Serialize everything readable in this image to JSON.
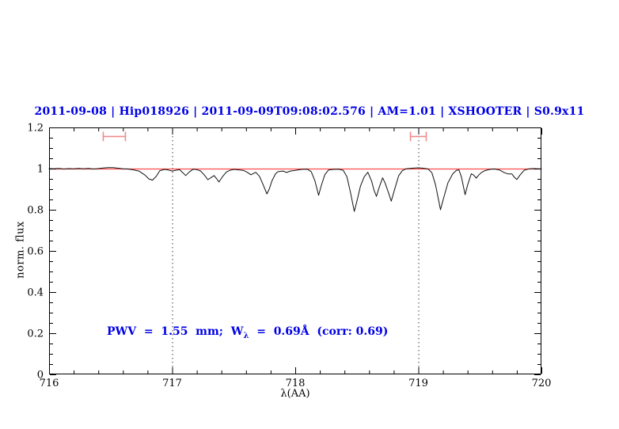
{
  "title": {
    "text": "2011-09-08 | Hip018926 | 2011-09-09T09:08:02.576 | AM=1.01 | XSHOOTER | S0.9x11",
    "color": "#0000e6"
  },
  "annotation": {
    "prefix": "PWV  =  1.55  mm;  W",
    "subscript": "λ",
    "suffix": "  =  0.69Å  (corr: 0.69)",
    "color": "#0000e6"
  },
  "chart_data": {
    "type": "line",
    "title": "2011-09-08 | Hip018926 | 2011-09-09T09:08:02.576 | AM=1.01 | XSHOOTER | S0.9x11",
    "xlabel": "λ(AA)",
    "ylabel": "norm. flux",
    "xlim": [
      716,
      720
    ],
    "ylim": [
      0,
      1.2
    ],
    "x_major_ticks": [
      716,
      717,
      718,
      719,
      720
    ],
    "x_tick_labels": [
      "716",
      "717",
      "718",
      "719",
      "720"
    ],
    "x_minor_step": 0.2,
    "y_major_ticks": [
      0,
      0.2,
      0.4,
      0.6,
      0.8,
      1,
      1.2
    ],
    "y_tick_labels": [
      "0",
      "0.2",
      "0.4",
      "0.6",
      "0.8",
      "1",
      "1.2"
    ],
    "y_minor_step": 0.05,
    "grid": "off",
    "dotted_vlines": [
      717,
      719
    ],
    "reference_line": {
      "y": 1.0,
      "color": "#ff4d4d"
    },
    "markers": [
      {
        "type": "errorbar-h",
        "x_center": 716.53,
        "x_half_width": 0.09,
        "y": 1.156,
        "cap_half_height": 0.023,
        "color": "#f08c8c"
      },
      {
        "type": "errorbar-h",
        "x_center": 719.0,
        "x_half_width": 0.064,
        "y": 1.156,
        "cap_half_height": 0.023,
        "color": "#f08c8c"
      }
    ],
    "series": [
      {
        "name": "normalized spectrum",
        "color": "#111111",
        "points": [
          [
            716.0,
            1.0
          ],
          [
            716.04,
            0.999
          ],
          [
            716.08,
            1.001
          ],
          [
            716.12,
            0.998
          ],
          [
            716.16,
            1.0
          ],
          [
            716.2,
            0.999
          ],
          [
            716.24,
            1.001
          ],
          [
            716.28,
            0.999
          ],
          [
            716.32,
            1.001
          ],
          [
            716.36,
            0.998
          ],
          [
            716.4,
            1.0
          ],
          [
            716.44,
            1.003
          ],
          [
            716.48,
            1.005
          ],
          [
            716.52,
            1.005
          ],
          [
            716.56,
            1.002
          ],
          [
            716.6,
            0.999
          ],
          [
            716.64,
            0.998
          ],
          [
            716.69,
            0.993
          ],
          [
            716.73,
            0.988
          ],
          [
            716.78,
            0.968
          ],
          [
            716.81,
            0.95
          ],
          [
            716.84,
            0.944
          ],
          [
            716.87,
            0.962
          ],
          [
            716.9,
            0.99
          ],
          [
            716.94,
            0.996
          ],
          [
            716.97,
            0.993
          ],
          [
            717.0,
            0.988
          ],
          [
            717.03,
            0.992
          ],
          [
            717.06,
            0.995
          ],
          [
            717.09,
            0.978
          ],
          [
            717.11,
            0.966
          ],
          [
            717.14,
            0.984
          ],
          [
            717.17,
            0.997
          ],
          [
            717.2,
            0.995
          ],
          [
            717.23,
            0.989
          ],
          [
            717.26,
            0.97
          ],
          [
            717.29,
            0.946
          ],
          [
            717.32,
            0.958
          ],
          [
            717.34,
            0.966
          ],
          [
            717.36,
            0.952
          ],
          [
            717.38,
            0.935
          ],
          [
            717.41,
            0.962
          ],
          [
            717.44,
            0.983
          ],
          [
            717.47,
            0.992
          ],
          [
            717.5,
            0.996
          ],
          [
            717.54,
            0.994
          ],
          [
            717.58,
            0.991
          ],
          [
            717.61,
            0.982
          ],
          [
            717.64,
            0.97
          ],
          [
            717.66,
            0.976
          ],
          [
            717.68,
            0.982
          ],
          [
            717.71,
            0.962
          ],
          [
            717.74,
            0.92
          ],
          [
            717.77,
            0.877
          ],
          [
            717.79,
            0.902
          ],
          [
            717.81,
            0.94
          ],
          [
            717.84,
            0.975
          ],
          [
            717.86,
            0.985
          ],
          [
            717.9,
            0.988
          ],
          [
            717.93,
            0.981
          ],
          [
            717.96,
            0.988
          ],
          [
            718.0,
            0.991
          ],
          [
            718.05,
            0.996
          ],
          [
            718.1,
            0.997
          ],
          [
            718.13,
            0.985
          ],
          [
            718.16,
            0.94
          ],
          [
            718.19,
            0.87
          ],
          [
            718.21,
            0.915
          ],
          [
            718.24,
            0.97
          ],
          [
            718.27,
            0.993
          ],
          [
            718.31,
            0.996
          ],
          [
            718.35,
            0.997
          ],
          [
            718.39,
            0.992
          ],
          [
            718.42,
            0.96
          ],
          [
            718.45,
            0.88
          ],
          [
            718.48,
            0.792
          ],
          [
            718.5,
            0.84
          ],
          [
            718.53,
            0.915
          ],
          [
            718.56,
            0.96
          ],
          [
            718.59,
            0.982
          ],
          [
            718.62,
            0.94
          ],
          [
            718.64,
            0.895
          ],
          [
            718.66,
            0.865
          ],
          [
            718.68,
            0.905
          ],
          [
            718.71,
            0.955
          ],
          [
            718.73,
            0.93
          ],
          [
            718.76,
            0.878
          ],
          [
            718.78,
            0.842
          ],
          [
            718.81,
            0.905
          ],
          [
            718.84,
            0.965
          ],
          [
            718.87,
            0.99
          ],
          [
            718.9,
            0.999
          ],
          [
            718.95,
            1.002
          ],
          [
            719.0,
            1.004
          ],
          [
            719.04,
            1.002
          ],
          [
            719.08,
            0.998
          ],
          [
            719.11,
            0.98
          ],
          [
            719.14,
            0.92
          ],
          [
            719.18,
            0.8
          ],
          [
            719.2,
            0.845
          ],
          [
            719.24,
            0.93
          ],
          [
            719.28,
            0.975
          ],
          [
            719.31,
            0.992
          ],
          [
            719.33,
            0.994
          ],
          [
            719.35,
            0.96
          ],
          [
            719.38,
            0.873
          ],
          [
            719.4,
            0.92
          ],
          [
            719.43,
            0.975
          ],
          [
            719.45,
            0.968
          ],
          [
            719.47,
            0.954
          ],
          [
            719.49,
            0.968
          ],
          [
            719.51,
            0.98
          ],
          [
            719.54,
            0.99
          ],
          [
            719.58,
            0.996
          ],
          [
            719.62,
            0.998
          ],
          [
            719.66,
            0.993
          ],
          [
            719.7,
            0.98
          ],
          [
            719.73,
            0.974
          ],
          [
            719.76,
            0.974
          ],
          [
            719.78,
            0.958
          ],
          [
            719.8,
            0.947
          ],
          [
            719.83,
            0.972
          ],
          [
            719.86,
            0.992
          ],
          [
            719.9,
            0.999
          ],
          [
            719.94,
            1.0
          ],
          [
            720.0,
            0.998
          ]
        ]
      }
    ],
    "legend": "none"
  }
}
